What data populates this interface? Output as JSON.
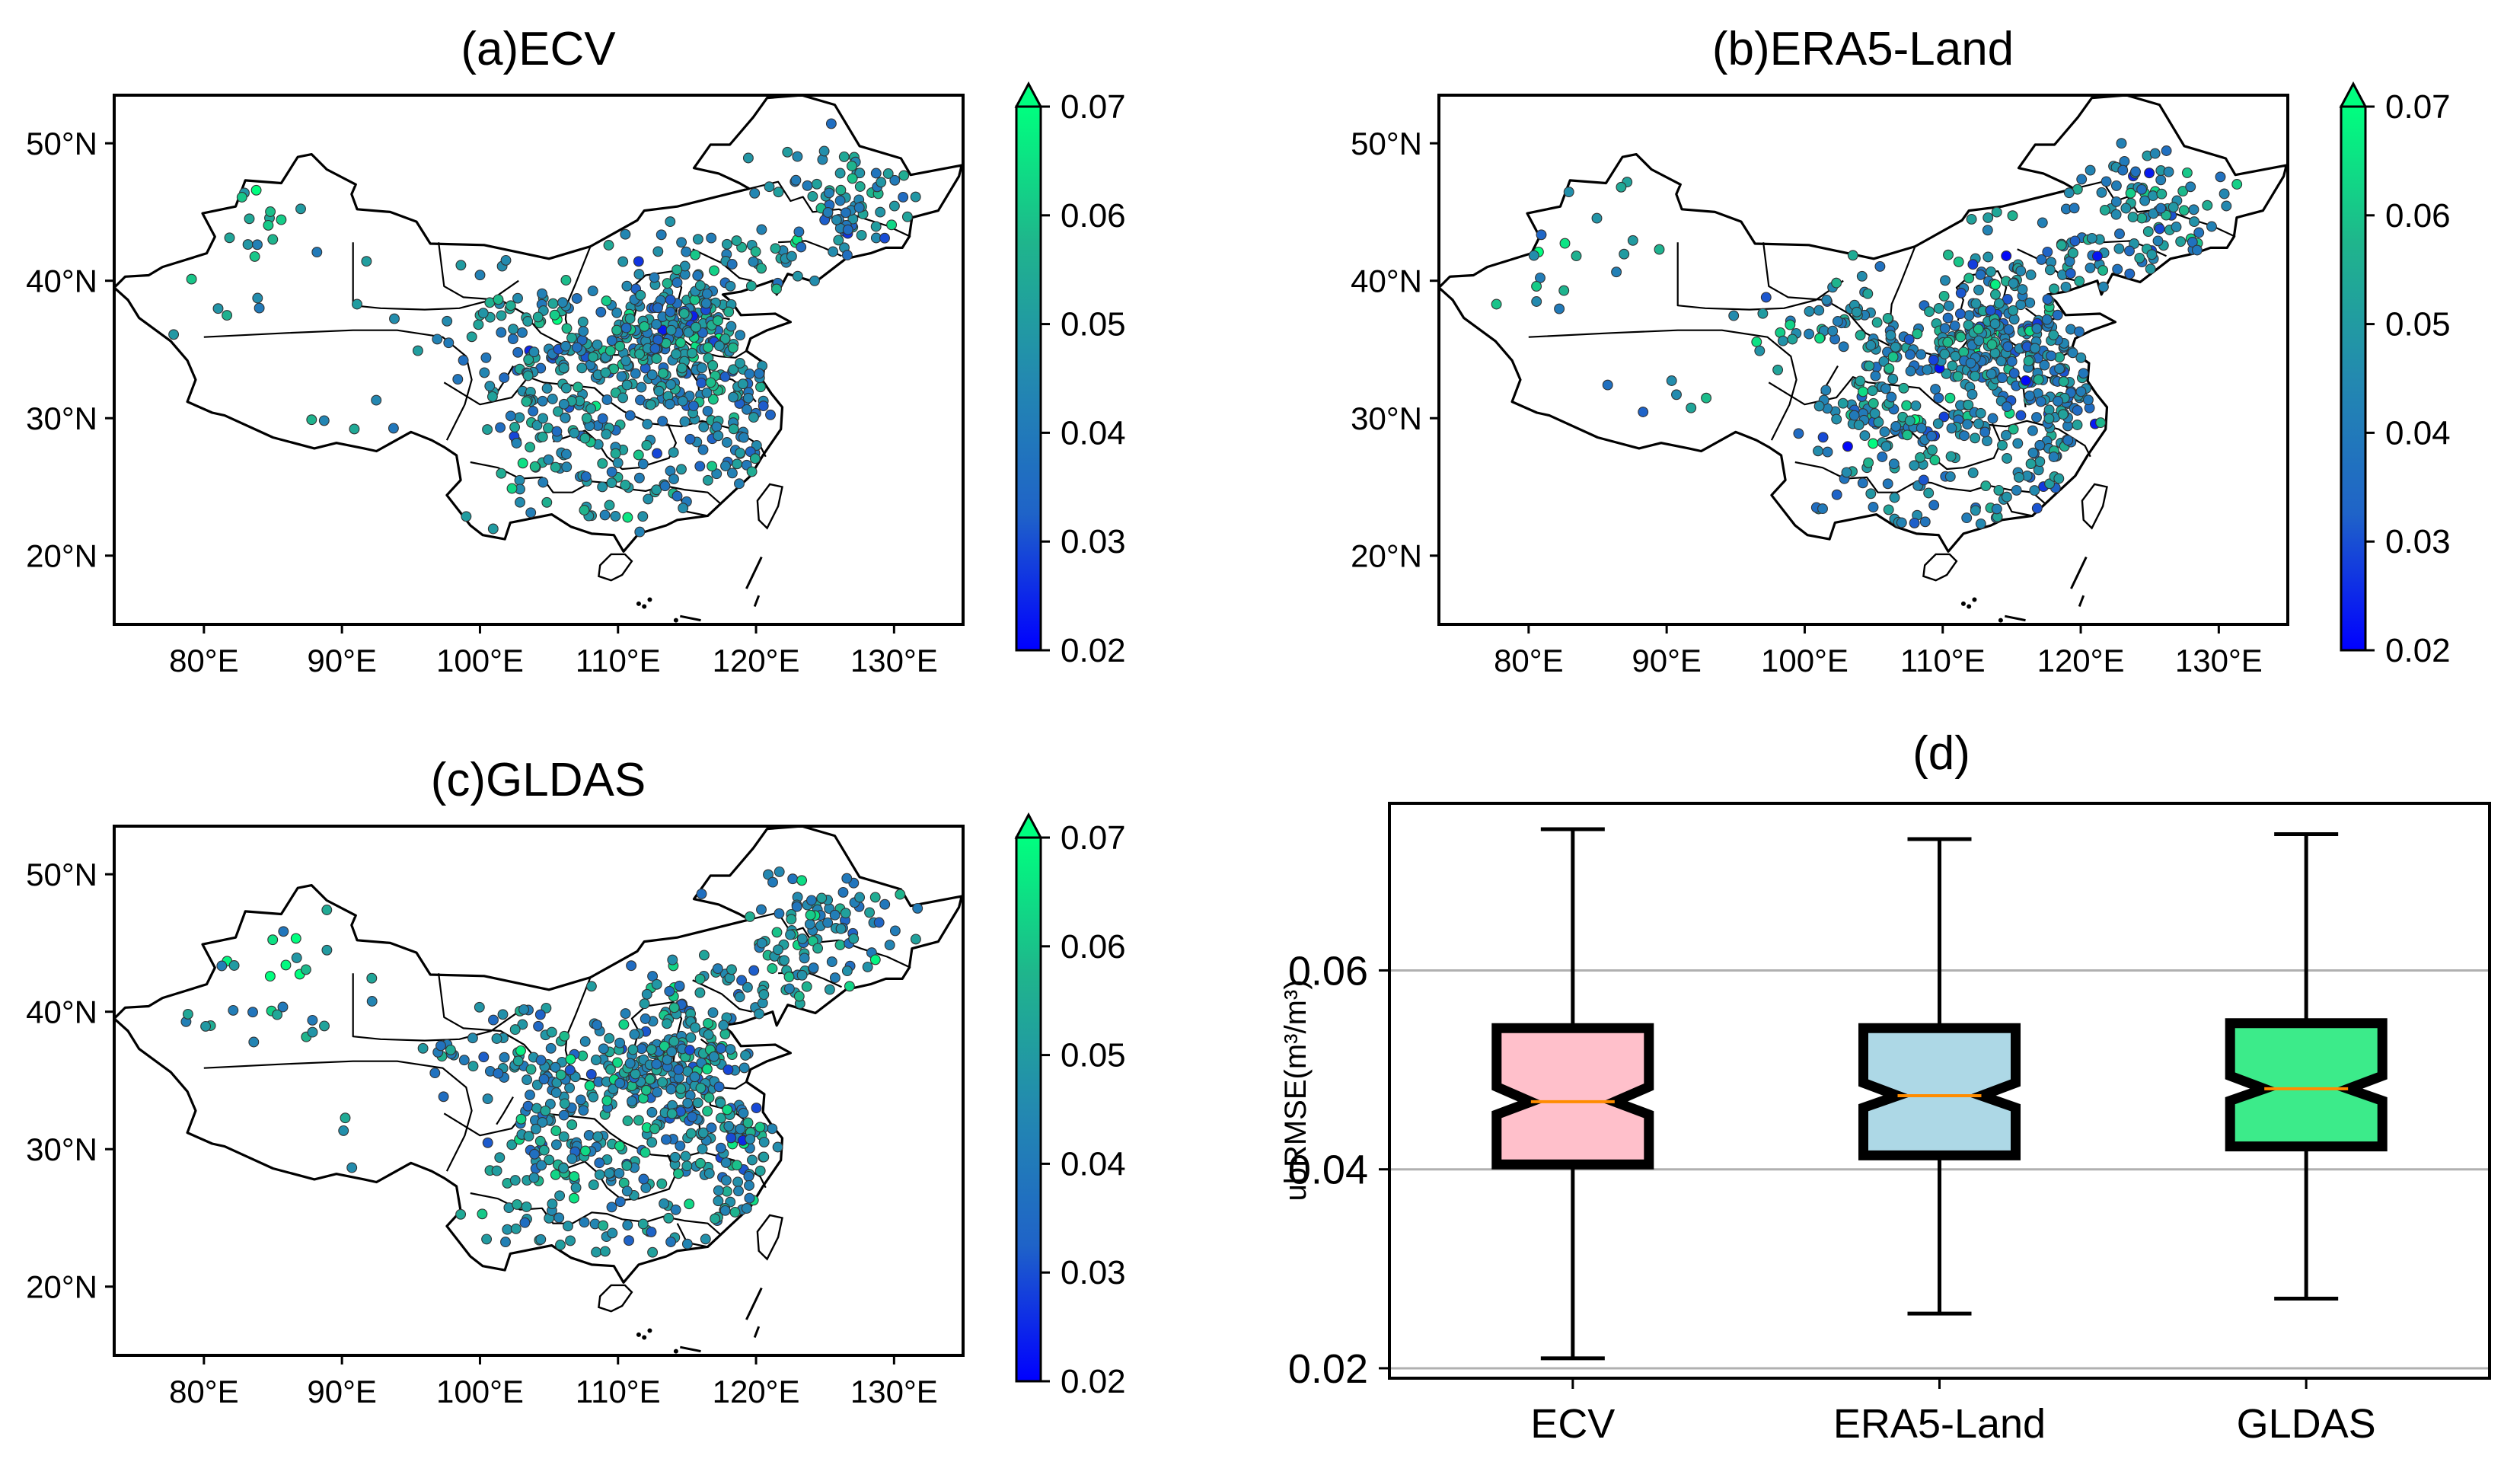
{
  "colors": {
    "cmap": [
      "#0000ff",
      "#1f63c8",
      "#2389b0",
      "#1fb58c",
      "#00ff7f"
    ],
    "box_fill": [
      "#ffc0cb",
      "#add8e6",
      "#3ceb8a"
    ],
    "median": "#ff8c00",
    "grid": "#b0b0b0"
  },
  "chart_data": [
    {
      "type": "scatter",
      "title": "(a)ECV",
      "x_ticks": [
        "80°E",
        "90°E",
        "100°E",
        "110°E",
        "120°E",
        "130°E"
      ],
      "y_ticks": [
        "20°N",
        "30°N",
        "40°N",
        "50°N"
      ],
      "x_range": [
        73.5,
        135
      ],
      "y_range": [
        15,
        53.5
      ],
      "colorbar": {
        "range": [
          0.02,
          0.07
        ],
        "ticks": [
          "0.02",
          "0.03",
          "0.04",
          "0.05",
          "0.06",
          "0.07"
        ],
        "extend": "max"
      },
      "seed": 11,
      "bias": 0.001
    },
    {
      "type": "scatter",
      "title": "(b)ERA5-Land",
      "x_ticks": [
        "80°E",
        "90°E",
        "100°E",
        "110°E",
        "120°E",
        "130°E"
      ],
      "y_ticks": [
        "20°N",
        "30°N",
        "40°N",
        "50°N"
      ],
      "x_range": [
        73.5,
        135
      ],
      "y_range": [
        15,
        53.5
      ],
      "colorbar": {
        "range": [
          0.02,
          0.07
        ],
        "ticks": [
          "0.02",
          "0.03",
          "0.04",
          "0.05",
          "0.06",
          "0.07"
        ],
        "extend": "max"
      },
      "seed": 29,
      "bias": 0.0
    },
    {
      "type": "scatter",
      "title": "(c)GLDAS",
      "x_ticks": [
        "80°E",
        "90°E",
        "100°E",
        "110°E",
        "120°E",
        "130°E"
      ],
      "y_ticks": [
        "20°N",
        "30°N",
        "40°N",
        "50°N"
      ],
      "x_range": [
        73.5,
        135
      ],
      "y_range": [
        15,
        53.5
      ],
      "colorbar": {
        "range": [
          0.02,
          0.07
        ],
        "ticks": [
          "0.02",
          "0.03",
          "0.04",
          "0.05",
          "0.06",
          "0.07"
        ],
        "extend": "max"
      },
      "seed": 47,
      "bias": 0.0015
    },
    {
      "type": "box",
      "title": "(d)",
      "ylabel": "ubRMSE(m³/m³)",
      "ylim": [
        0.019,
        0.0768
      ],
      "y_ticks": [
        0.02,
        0.04,
        0.06
      ],
      "y_tick_labels": [
        "0.02",
        "0.04",
        "0.06"
      ],
      "categories": [
        "ECV",
        "ERA5-Land",
        "GLDAS"
      ],
      "boxes": [
        {
          "name": "ECV",
          "whisker_low": 0.021,
          "q1": 0.0405,
          "median": 0.0468,
          "q3": 0.0542,
          "whisker_high": 0.0742,
          "notch_low": 0.0455,
          "notch_high": 0.0483
        },
        {
          "name": "ERA5-Land",
          "whisker_low": 0.0255,
          "q1": 0.0414,
          "median": 0.0474,
          "q3": 0.0542,
          "whisker_high": 0.0732,
          "notch_low": 0.0462,
          "notch_high": 0.0487
        },
        {
          "name": "GLDAS",
          "whisker_low": 0.027,
          "q1": 0.0423,
          "median": 0.0481,
          "q3": 0.0547,
          "whisker_high": 0.0737,
          "notch_low": 0.0469,
          "notch_high": 0.0494
        }
      ]
    }
  ]
}
